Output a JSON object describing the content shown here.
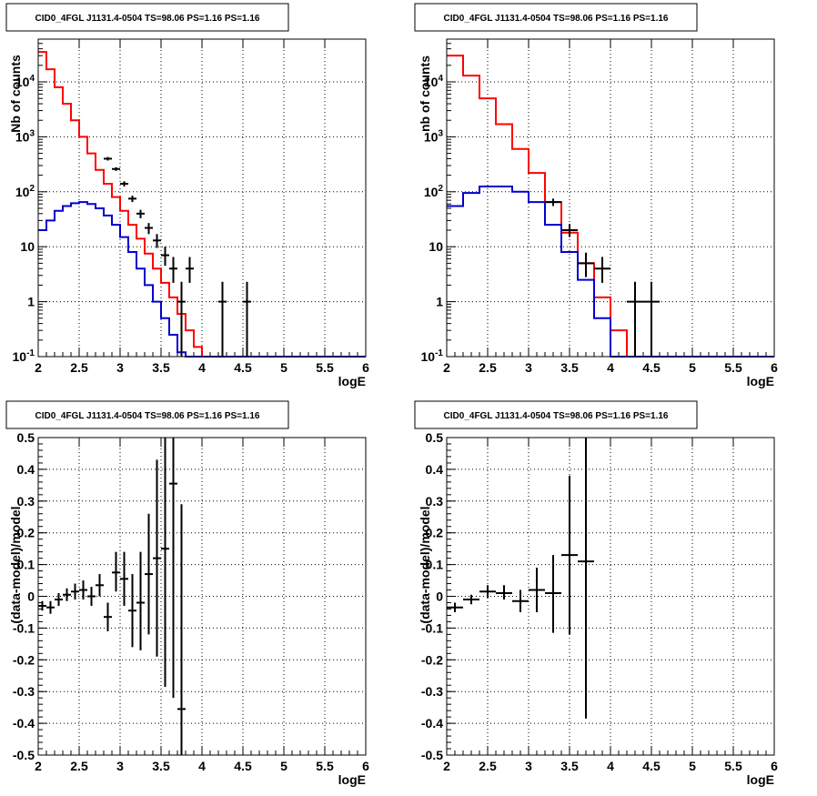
{
  "chart_data": [
    {
      "type": "line",
      "title": "CID0_4FGL J1131.4-0504 TS=98.06 PS=1.16 PS=1.16",
      "xlabel": "logE",
      "ylabel": "Nb of counts",
      "xlim": [
        2,
        6
      ],
      "ylim": [
        0.1,
        60000
      ],
      "yscale": "log",
      "grid": true,
      "xticks": [
        "2",
        "2.5",
        "3",
        "3.5",
        "4",
        "4.5",
        "5",
        "5.5",
        "6"
      ],
      "yticks": [
        "10-1",
        "1",
        "10",
        "102",
        "103",
        "104"
      ],
      "bin_edges": [
        2.0,
        2.1,
        2.2,
        2.3,
        2.4,
        2.5,
        2.6,
        2.7,
        2.8,
        2.9,
        3.0,
        3.1,
        3.2,
        3.3,
        3.4,
        3.5,
        3.6,
        3.7,
        3.8,
        3.9,
        4.0,
        4.1,
        4.2,
        4.3,
        4.4,
        4.5,
        4.6,
        4.7,
        4.8,
        4.9,
        5.0,
        5.1,
        5.2,
        5.3,
        5.4,
        5.5,
        5.6,
        5.7,
        5.8,
        5.9,
        6.0
      ],
      "series": [
        {
          "color": "#ff0000",
          "kind": "step",
          "values": [
            35000,
            17000,
            8000,
            4000,
            2000,
            1000,
            500,
            250,
            140,
            80,
            45,
            25,
            14,
            7.5,
            4,
            2.2,
            1.2,
            0.6,
            0.3,
            0.15,
            0.1,
            0.1,
            0.1,
            0.1,
            0.1,
            0.1,
            0.1,
            0.1,
            0.1,
            0.1,
            0.1,
            0.1,
            0.1,
            0.1,
            0.1,
            0.1,
            0.1,
            0.1,
            0.1,
            0.1
          ]
        },
        {
          "color": "#0000cc",
          "kind": "step",
          "values": [
            20,
            30,
            45,
            55,
            62,
            65,
            60,
            50,
            37,
            25,
            15,
            8,
            4,
            2,
            1,
            0.5,
            0.25,
            0.12,
            0.1,
            0.1,
            0.1,
            0.1,
            0.1,
            0.1,
            0.1,
            0.1,
            0.1,
            0.1,
            0.1,
            0.1,
            0.1,
            0.1,
            0.1,
            0.1,
            0.1,
            0.1,
            0.1,
            0.1,
            0.1,
            0.1
          ]
        },
        {
          "color": "#000000",
          "kind": "points",
          "points": [
            {
              "x": 2.85,
              "y": 400,
              "ylo": 370,
              "yhi": 430,
              "xerr": 0.05
            },
            {
              "x": 2.95,
              "y": 260,
              "ylo": 240,
              "yhi": 280,
              "xerr": 0.05
            },
            {
              "x": 3.05,
              "y": 140,
              "ylo": 125,
              "yhi": 155,
              "xerr": 0.05
            },
            {
              "x": 3.15,
              "y": 75,
              "ylo": 65,
              "yhi": 85,
              "xerr": 0.05
            },
            {
              "x": 3.25,
              "y": 40,
              "ylo": 33,
              "yhi": 47,
              "xerr": 0.05
            },
            {
              "x": 3.35,
              "y": 22,
              "ylo": 17,
              "yhi": 27,
              "xerr": 0.05
            },
            {
              "x": 3.45,
              "y": 13,
              "ylo": 9.5,
              "yhi": 17,
              "xerr": 0.05
            },
            {
              "x": 3.55,
              "y": 7,
              "ylo": 4.5,
              "yhi": 10,
              "xerr": 0.05
            },
            {
              "x": 3.65,
              "y": 4,
              "ylo": 2.2,
              "yhi": 6.5,
              "xerr": 0.05
            },
            {
              "x": 3.75,
              "y": 1,
              "ylo": 0.1,
              "yhi": 2.3,
              "xerr": 0.05
            },
            {
              "x": 3.85,
              "y": 4,
              "ylo": 2.2,
              "yhi": 6.5,
              "xerr": 0.05
            },
            {
              "x": 4.25,
              "y": 1,
              "ylo": 0.1,
              "yhi": 2.3,
              "xerr": 0.05
            },
            {
              "x": 4.55,
              "y": 1,
              "ylo": 0.1,
              "yhi": 2.3,
              "xerr": 0.05
            }
          ]
        }
      ]
    },
    {
      "type": "line",
      "title": "CID0_4FGL J1131.4-0504 TS=98.06 PS=1.16 PS=1.16",
      "xlabel": "logE",
      "ylabel": "nb of counts",
      "xlim": [
        2,
        6
      ],
      "ylim": [
        0.1,
        60000
      ],
      "yscale": "log",
      "grid": true,
      "xticks": [
        "2",
        "2.5",
        "3",
        "3.5",
        "4",
        "4.5",
        "5",
        "5.5",
        "6"
      ],
      "yticks": [
        "10-1",
        "1",
        "10",
        "102",
        "103",
        "104"
      ],
      "bin_edges": [
        2.0,
        2.2,
        2.4,
        2.6,
        2.8,
        3.0,
        3.2,
        3.4,
        3.6,
        3.8,
        4.0,
        4.2,
        4.4,
        4.6,
        4.8,
        5.0,
        5.2,
        5.4,
        5.6,
        5.8,
        6.0
      ],
      "series": [
        {
          "color": "#ff0000",
          "kind": "step",
          "values": [
            30000,
            13000,
            5000,
            1700,
            600,
            220,
            65,
            18,
            5,
            1.2,
            0.3,
            0.1,
            0.1,
            0.1,
            0.1,
            0.1,
            0.1,
            0.1,
            0.1,
            0.1
          ]
        },
        {
          "color": "#0000cc",
          "kind": "step",
          "values": [
            55,
            95,
            125,
            125,
            100,
            65,
            25,
            8,
            2.5,
            0.5,
            0.1,
            0.1,
            0.1,
            0.1,
            0.1,
            0.1,
            0.1,
            0.1,
            0.1,
            0.1
          ]
        },
        {
          "color": "#000000",
          "kind": "points",
          "points": [
            {
              "x": 3.3,
              "y": 65,
              "ylo": 55,
              "yhi": 75,
              "xerr": 0.1
            },
            {
              "x": 3.5,
              "y": 20,
              "ylo": 15,
              "yhi": 26,
              "xerr": 0.1
            },
            {
              "x": 3.7,
              "y": 5,
              "ylo": 2.8,
              "yhi": 7.8,
              "xerr": 0.1
            },
            {
              "x": 3.9,
              "y": 4,
              "ylo": 2.2,
              "yhi": 6.5,
              "xerr": 0.1
            },
            {
              "x": 4.3,
              "y": 1,
              "ylo": 0.1,
              "yhi": 2.3,
              "xerr": 0.1
            },
            {
              "x": 4.5,
              "y": 1,
              "ylo": 0.1,
              "yhi": 2.3,
              "xerr": 0.1
            }
          ]
        }
      ]
    },
    {
      "type": "scatter",
      "title": "CID0_4FGL J1131.4-0504 TS=98.06 PS=1.16 PS=1.16",
      "xlabel": "logE",
      "ylabel": "(data-model)/model",
      "xlim": [
        2,
        6
      ],
      "ylim": [
        -0.5,
        0.5
      ],
      "grid": true,
      "xticks": [
        "2",
        "2.5",
        "3",
        "3.5",
        "4",
        "4.5",
        "5",
        "5.5",
        "6"
      ],
      "yticks": [
        "-0.5",
        "-0.4",
        "-0.3",
        "-0.2",
        "-0.1",
        "0",
        "0.1",
        "0.2",
        "0.3",
        "0.4",
        "0.5"
      ],
      "series": [
        {
          "color": "#000000",
          "kind": "points",
          "points": [
            {
              "x": 2.05,
              "y": -0.03,
              "ylo": -0.045,
              "yhi": -0.015,
              "xerr": 0.05
            },
            {
              "x": 2.15,
              "y": -0.035,
              "ylo": -0.055,
              "yhi": -0.015,
              "xerr": 0.05
            },
            {
              "x": 2.25,
              "y": -0.01,
              "ylo": -0.03,
              "yhi": 0.01,
              "xerr": 0.05
            },
            {
              "x": 2.35,
              "y": 0.005,
              "ylo": -0.015,
              "yhi": 0.025,
              "xerr": 0.05
            },
            {
              "x": 2.45,
              "y": 0.015,
              "ylo": -0.01,
              "yhi": 0.04,
              "xerr": 0.05
            },
            {
              "x": 2.55,
              "y": 0.02,
              "ylo": -0.01,
              "yhi": 0.05,
              "xerr": 0.05
            },
            {
              "x": 2.65,
              "y": 0.0,
              "ylo": -0.03,
              "yhi": 0.03,
              "xerr": 0.05
            },
            {
              "x": 2.75,
              "y": 0.035,
              "ylo": 0.0,
              "yhi": 0.07,
              "xerr": 0.05
            },
            {
              "x": 2.85,
              "y": -0.065,
              "ylo": -0.11,
              "yhi": -0.02,
              "xerr": 0.05
            },
            {
              "x": 2.95,
              "y": 0.075,
              "ylo": 0.015,
              "yhi": 0.14,
              "xerr": 0.05
            },
            {
              "x": 3.05,
              "y": 0.055,
              "ylo": -0.03,
              "yhi": 0.14,
              "xerr": 0.05
            },
            {
              "x": 3.15,
              "y": -0.045,
              "ylo": -0.16,
              "yhi": 0.07,
              "xerr": 0.05
            },
            {
              "x": 3.25,
              "y": -0.02,
              "ylo": -0.17,
              "yhi": 0.14,
              "xerr": 0.05
            },
            {
              "x": 3.35,
              "y": 0.07,
              "ylo": -0.12,
              "yhi": 0.26,
              "xerr": 0.05
            },
            {
              "x": 3.45,
              "y": 0.12,
              "ylo": -0.19,
              "yhi": 0.43,
              "xerr": 0.05
            },
            {
              "x": 3.55,
              "y": 0.15,
              "ylo": -0.285,
              "yhi": 0.5,
              "xerr": 0.05
            },
            {
              "x": 3.65,
              "y": 0.355,
              "ylo": -0.32,
              "yhi": 0.5,
              "xerr": 0.05
            },
            {
              "x": 3.75,
              "y": -0.355,
              "ylo": -0.5,
              "yhi": 0.29,
              "xerr": 0.05
            }
          ]
        }
      ]
    },
    {
      "type": "scatter",
      "title": "CID0_4FGL J1131.4-0504 TS=98.06 PS=1.16 PS=1.16",
      "xlabel": "logE",
      "ylabel": "(data-model)/model",
      "xlim": [
        2,
        6
      ],
      "ylim": [
        -0.5,
        0.5
      ],
      "grid": true,
      "xticks": [
        "2",
        "2.5",
        "3",
        "3.5",
        "4",
        "4.5",
        "5",
        "5.5",
        "6"
      ],
      "yticks": [
        "-0.5",
        "-0.4",
        "-0.3",
        "-0.2",
        "-0.1",
        "0",
        "0.1",
        "0.2",
        "0.3",
        "0.4",
        "0.5"
      ],
      "series": [
        {
          "color": "#000000",
          "kind": "points",
          "points": [
            {
              "x": 2.1,
              "y": -0.035,
              "ylo": -0.05,
              "yhi": -0.02,
              "xerr": 0.1
            },
            {
              "x": 2.3,
              "y": -0.01,
              "ylo": -0.025,
              "yhi": 0.005,
              "xerr": 0.1
            },
            {
              "x": 2.5,
              "y": 0.015,
              "ylo": -0.005,
              "yhi": 0.035,
              "xerr": 0.1
            },
            {
              "x": 2.7,
              "y": 0.01,
              "ylo": -0.01,
              "yhi": 0.035,
              "xerr": 0.1
            },
            {
              "x": 2.9,
              "y": -0.015,
              "ylo": -0.05,
              "yhi": 0.02,
              "xerr": 0.1
            },
            {
              "x": 3.1,
              "y": 0.02,
              "ylo": -0.05,
              "yhi": 0.09,
              "xerr": 0.1
            },
            {
              "x": 3.3,
              "y": 0.01,
              "ylo": -0.115,
              "yhi": 0.13,
              "xerr": 0.1
            },
            {
              "x": 3.5,
              "y": 0.13,
              "ylo": -0.12,
              "yhi": 0.38,
              "xerr": 0.1
            },
            {
              "x": 3.7,
              "y": 0.11,
              "ylo": -0.385,
              "yhi": 0.5,
              "xerr": 0.1
            }
          ]
        }
      ]
    }
  ]
}
